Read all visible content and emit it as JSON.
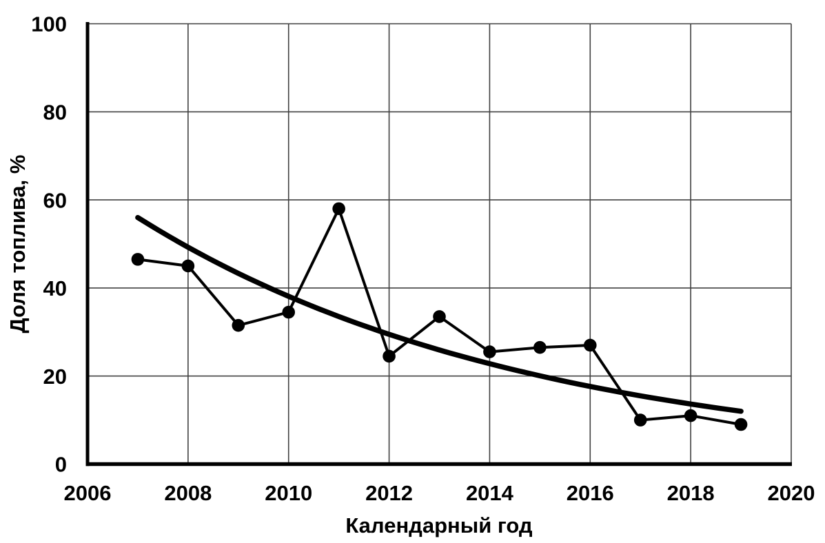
{
  "chart_data": {
    "type": "line",
    "title": "",
    "xlabel": "Календарный год",
    "ylabel": "Доля топлива, %",
    "xlim": [
      2006,
      2020
    ],
    "ylim": [
      0,
      100
    ],
    "x_ticks": [
      2006,
      2008,
      2010,
      2012,
      2014,
      2016,
      2018,
      2020
    ],
    "y_ticks": [
      0,
      20,
      40,
      60,
      80,
      100
    ],
    "grid": true,
    "legend": "none",
    "series": [
      {
        "kind": "data-points",
        "marker": "filled-circle",
        "x": [
          2007,
          2008,
          2009,
          2010,
          2011,
          2012,
          2013,
          2014,
          2015,
          2016,
          2017,
          2018,
          2019
        ],
        "values": [
          46.5,
          45,
          31.5,
          34.5,
          58,
          24.5,
          33.5,
          25.5,
          26.5,
          27,
          10,
          11,
          9
        ]
      },
      {
        "kind": "trend-curve",
        "fit": "exponential",
        "x_start": 2007,
        "x_end": 2019,
        "value_start": 56,
        "value_end": 12
      }
    ],
    "colors": {
      "background": "#ffffff",
      "grid": "#404040",
      "axis": "#000000",
      "series": "#000000",
      "trend": "#000000",
      "text": "#000000"
    }
  }
}
